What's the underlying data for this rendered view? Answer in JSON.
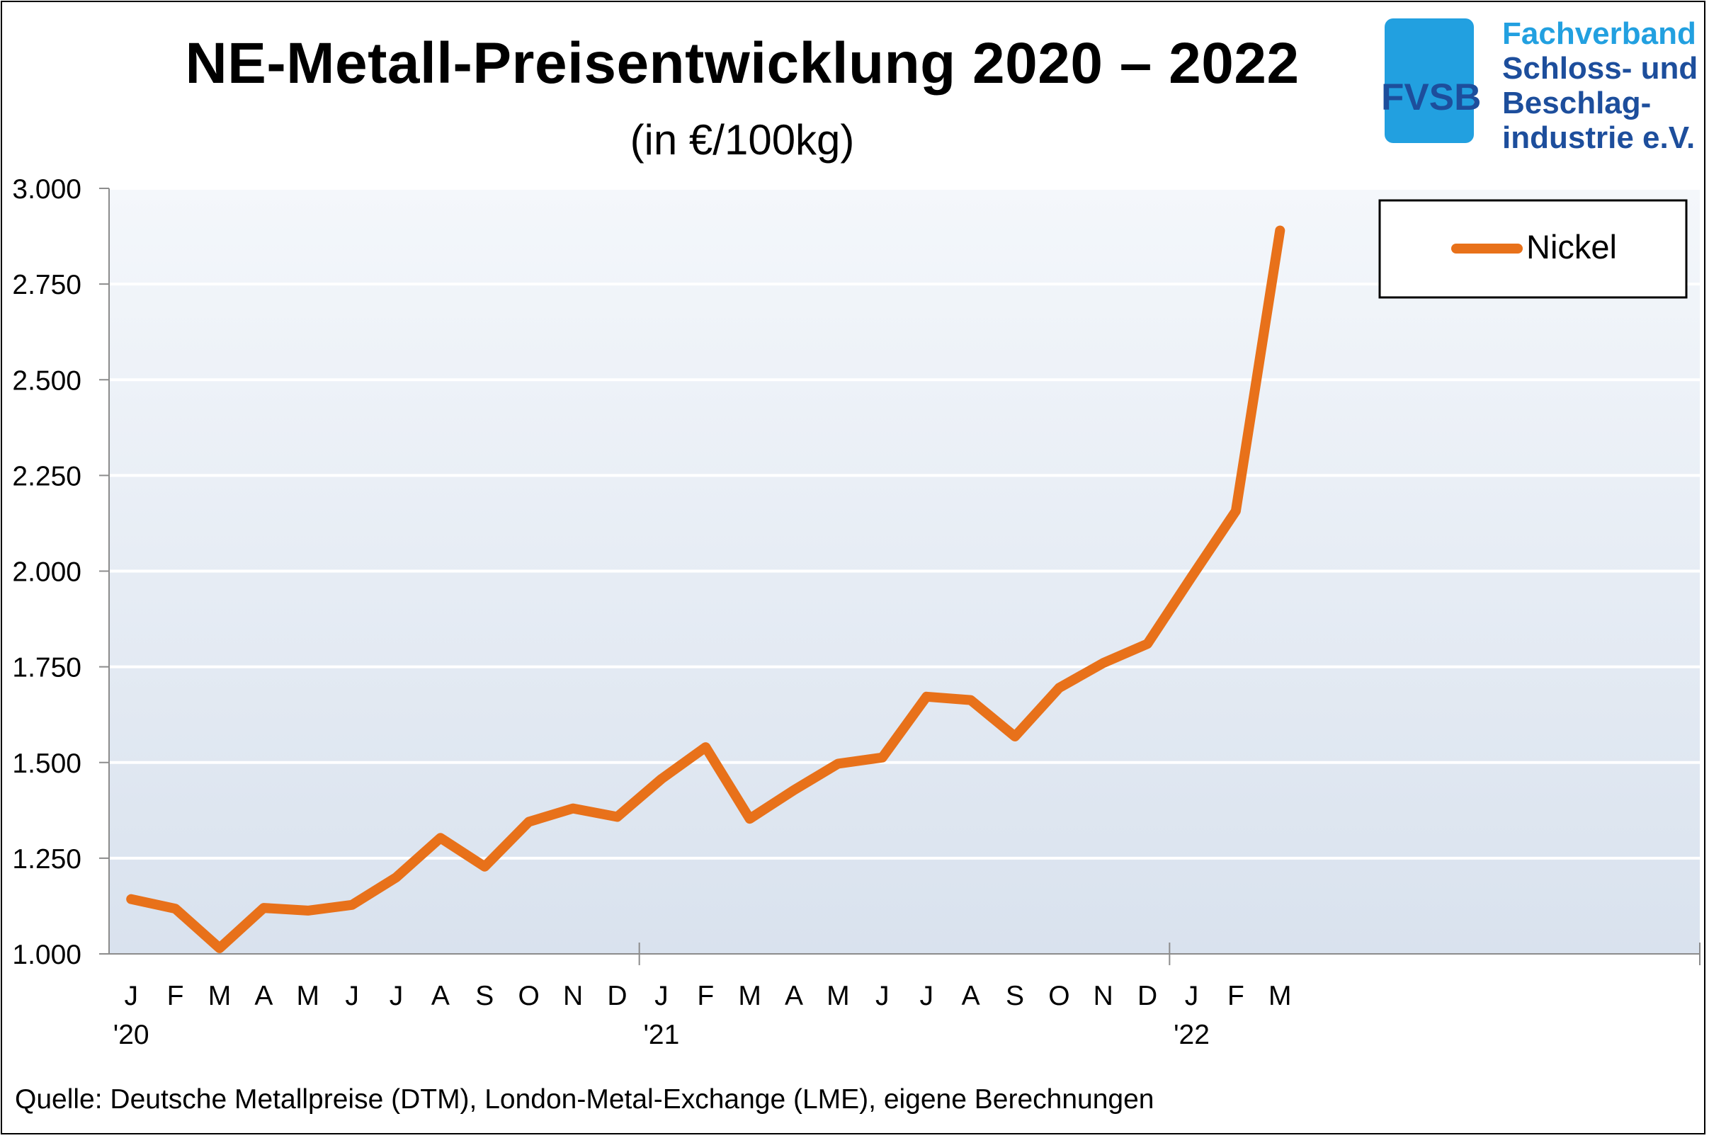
{
  "header": {
    "title": "NE-Metall-Preisentwicklung  2020 – 2022",
    "subtitle": "(in €/100kg)"
  },
  "logo": {
    "abbr": "FVSB",
    "name_lines": [
      "Fachverband",
      "Schloss- und",
      "Beschlag-",
      "industrie e.V."
    ]
  },
  "footer": {
    "source": "Quelle: Deutsche Metallpreise (DTM), London-Metal-Exchange (LME), eigene Berechnungen"
  },
  "chart_data": {
    "type": "line",
    "title": "NE-Metall-Preisentwicklung  2020 – 2022",
    "subtitle": "(in €/100kg)",
    "x": [
      "J",
      "F",
      "M",
      "A",
      "M",
      "J",
      "J",
      "A",
      "S",
      "O",
      "N",
      "D",
      "J",
      "F",
      "M",
      "A",
      "M",
      "J",
      "J",
      "A",
      "S",
      "O",
      "N",
      "D",
      "J",
      "F",
      "M"
    ],
    "year_labels": [
      {
        "label": "'20",
        "index": 0
      },
      {
        "label": "'21",
        "index": 12
      },
      {
        "label": "'22",
        "index": 24
      }
    ],
    "x_slots": 36,
    "series": [
      {
        "name": "Nickel",
        "color": "#e8711a",
        "values": [
          1143,
          1118,
          1015,
          1120,
          1113,
          1128,
          1200,
          1303,
          1228,
          1345,
          1380,
          1358,
          1457,
          1540,
          1353,
          1428,
          1497,
          1513,
          1672,
          1663,
          1568,
          1695,
          1760,
          1810,
          1985,
          2157,
          2890
        ]
      }
    ],
    "yticks": [
      "1.000",
      "1.250",
      "1.500",
      "1.750",
      "2.000",
      "2.250",
      "2.500",
      "2.750",
      "3.000"
    ],
    "ylim": [
      1000,
      3000
    ],
    "ystep": 250,
    "grid": true,
    "legend": "top-right",
    "colors": {
      "plot_bg_top": "#f4f7fb",
      "plot_bg_bottom": "#d9e2ee",
      "gridline": "#ffffff",
      "axis": "#8c8c8c"
    }
  }
}
